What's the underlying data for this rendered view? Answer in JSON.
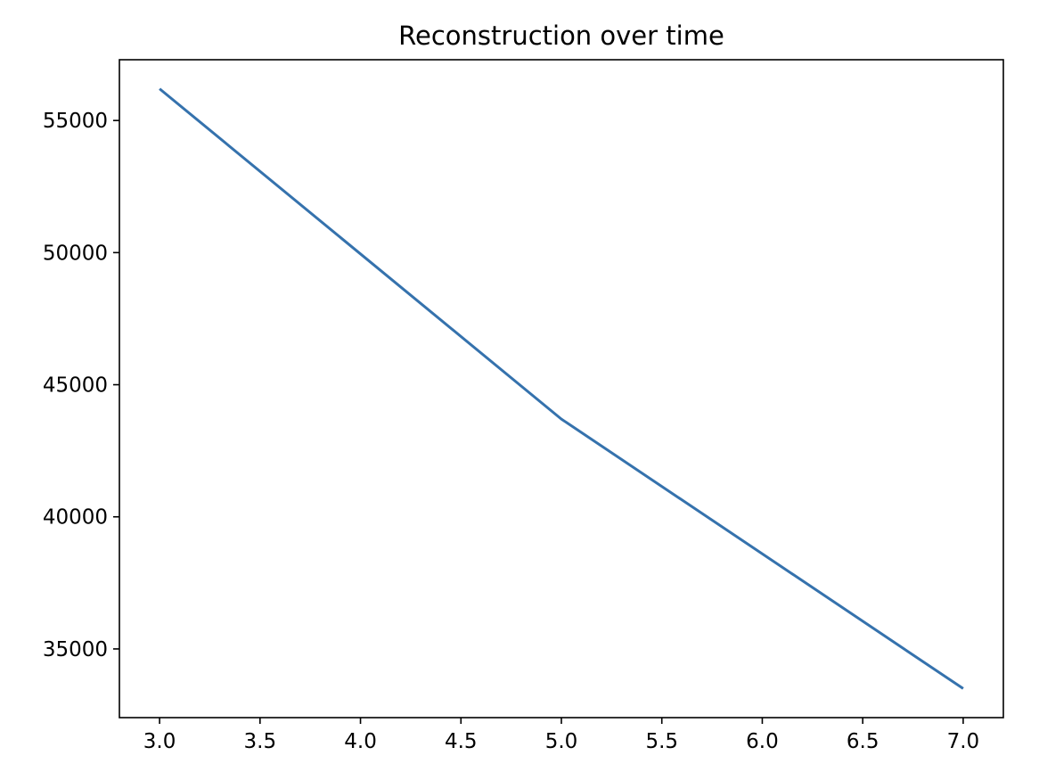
{
  "chart_data": {
    "type": "line",
    "title": "Reconstruction over time",
    "xlabel": "",
    "ylabel": "",
    "x": [
      3,
      5,
      7
    ],
    "series": [
      {
        "values": [
          56200,
          43700,
          33500
        ],
        "color": "#3572ad"
      }
    ],
    "xlim": [
      2.8,
      7.2
    ],
    "ylim": [
      32400,
      57300
    ],
    "xticks": [
      3.0,
      3.5,
      4.0,
      4.5,
      5.0,
      5.5,
      6.0,
      6.5,
      7.0
    ],
    "xtick_labels": [
      "3.0",
      "3.5",
      "4.0",
      "4.5",
      "5.0",
      "5.5",
      "6.0",
      "6.5",
      "7.0"
    ],
    "yticks": [
      35000,
      40000,
      45000,
      50000,
      55000
    ],
    "ytick_labels": [
      "35000",
      "40000",
      "45000",
      "50000",
      "55000"
    ],
    "grid": false,
    "legend": "none"
  }
}
